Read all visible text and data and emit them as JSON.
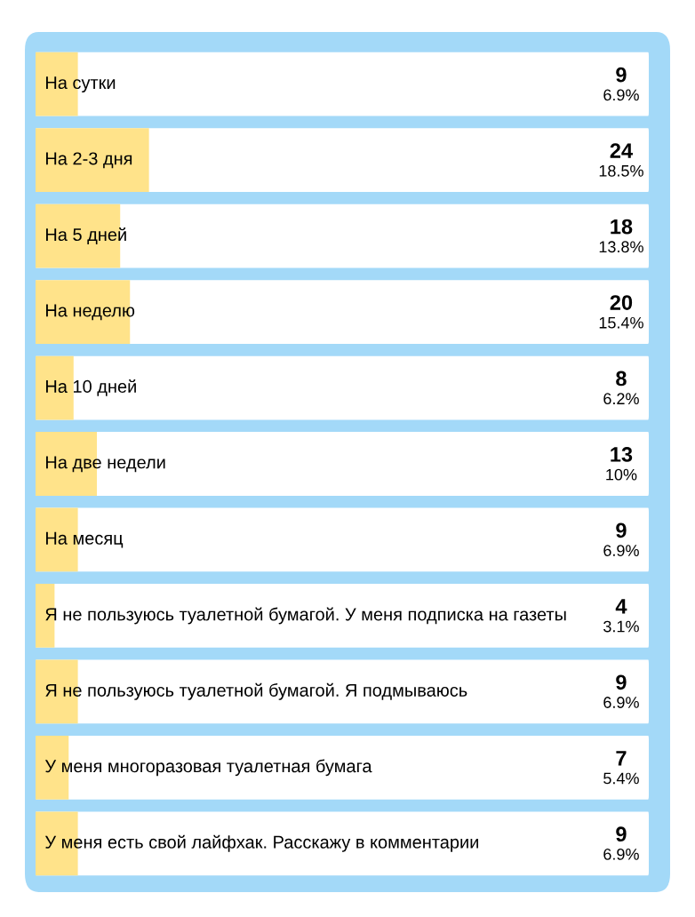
{
  "chart_data": {
    "type": "bar",
    "orientation": "horizontal",
    "categories": [
      "На сутки",
      "На 2-3 дня",
      "На 5 дней",
      "На неделю",
      "На 10 дней",
      "На две недели",
      "На месяц",
      "Я не пользуюсь туалетной бумагой. У меня подписка на газеты",
      "Я не пользуюсь туалетной бумагой. Я подмываюсь",
      "У меня многоразовая туалетная бумага",
      "У меня есть свой лайфхак. Расскажу в комментарии"
    ],
    "values": [
      6.9,
      18.5,
      13.8,
      15.4,
      6.2,
      10,
      6.9,
      3.1,
      6.9,
      5.4,
      6.9
    ],
    "value_labels": [
      "6.9%",
      "18.5%",
      "13.8%",
      "15.4%",
      "6.2%",
      "10%",
      "6.9%",
      "3.1%",
      "6.9%",
      "5.4%",
      "6.9%"
    ],
    "annotations": [
      "9",
      "24",
      "18",
      "20",
      "8",
      "13",
      "9",
      "4",
      "9",
      "7",
      "9"
    ],
    "color": "#ffe38a"
  }
}
